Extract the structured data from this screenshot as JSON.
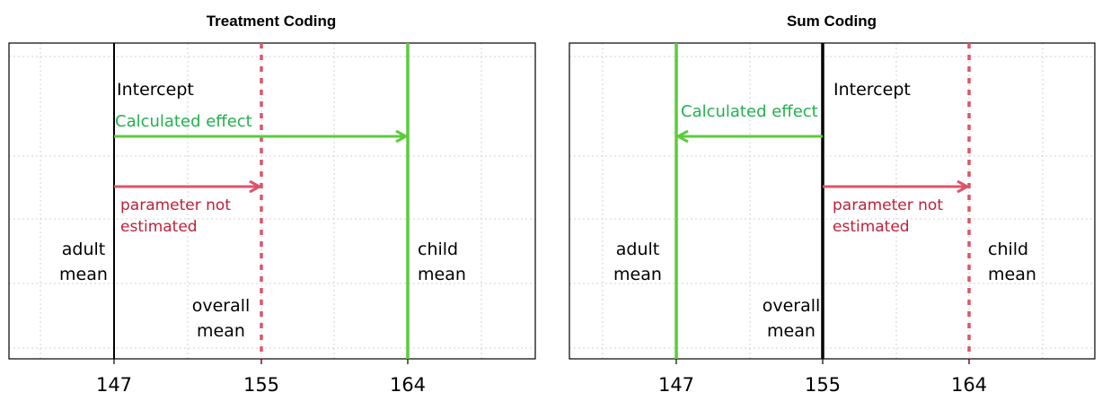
{
  "panels": [
    {
      "title": "Treatment Coding",
      "ticks": [
        "147",
        "155",
        "164"
      ],
      "intercept_label": "Intercept",
      "effect_label": "Calculated effect",
      "param_label_1": "parameter not",
      "param_label_2": "estimated",
      "adult_1": "adult",
      "adult_2": "mean",
      "child_1": "child",
      "child_2": "mean",
      "overall_1": "overall",
      "overall_2": "mean"
    },
    {
      "title": "Sum Coding",
      "ticks": [
        "147",
        "155",
        "164"
      ],
      "intercept_label": "Intercept",
      "effect_label": "Calculated effect",
      "param_label_1": "parameter not",
      "param_label_2": "estimated",
      "adult_1": "adult",
      "adult_2": "mean",
      "child_1": "child",
      "child_2": "mean",
      "overall_1": "overall",
      "overall_2": "mean"
    }
  ],
  "colors": {
    "green": "#5ccc3c",
    "red": "#df536b",
    "green_text": "#22b14c",
    "red_text": "#c0203a"
  }
}
